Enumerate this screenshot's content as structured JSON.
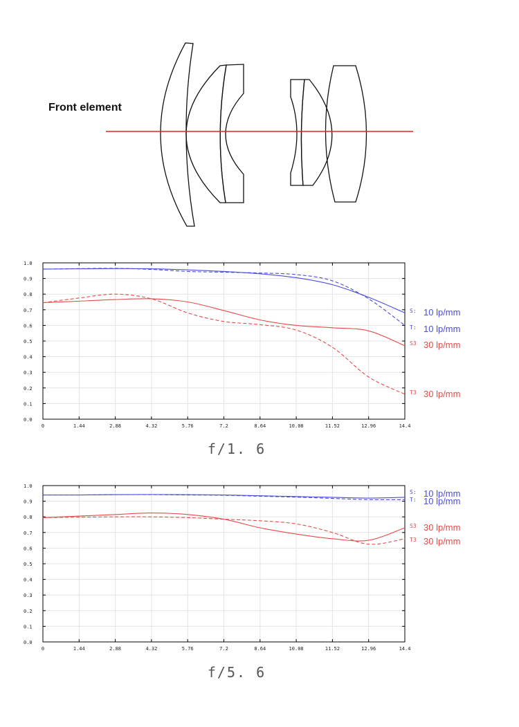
{
  "diagram": {
    "front_label": "Front element",
    "axis_color": "#e52222",
    "lens_color": "#111111"
  },
  "colors": {
    "sagittal_10": "#4a4ae0",
    "tangential_10": "#4a4ae0",
    "sagittal_30": "#e84848",
    "tangential_30": "#e84848"
  },
  "chart_data": [
    {
      "type": "line",
      "title": "",
      "caption": "f/1.6",
      "xlim": [
        0,
        14.4
      ],
      "ylim": [
        0,
        1.0
      ],
      "grid": true,
      "x_ticks": [
        "0",
        "1.44",
        "2.88",
        "4.32",
        "5.76",
        "7.2",
        "8.64",
        "10.08",
        "11.52",
        "12.96",
        "14.4"
      ],
      "y_ticks": [
        "0.0",
        "0.1",
        "0.2",
        "0.3",
        "0.4",
        "0.5",
        "0.6",
        "0.7",
        "0.8",
        "0.9",
        "1.0"
      ],
      "x": [
        0,
        1.44,
        2.88,
        4.32,
        5.76,
        7.2,
        8.64,
        10.08,
        11.52,
        12.96,
        14.4
      ],
      "series": [
        {
          "label": "S: 10 lp/mm",
          "style": "solid",
          "color": "#4a4ae0",
          "values": [
            0.96,
            0.962,
            0.963,
            0.962,
            0.955,
            0.945,
            0.93,
            0.905,
            0.86,
            0.78,
            0.68
          ]
        },
        {
          "label": "T: 10 lp/mm",
          "style": "dashed",
          "color": "#4a4ae0",
          "values": [
            0.96,
            0.963,
            0.965,
            0.958,
            0.945,
            0.94,
            0.935,
            0.925,
            0.885,
            0.77,
            0.6
          ]
        },
        {
          "label": "S3 30 lp/mm",
          "style": "solid",
          "color": "#e84848",
          "values": [
            0.745,
            0.755,
            0.765,
            0.77,
            0.75,
            0.695,
            0.635,
            0.6,
            0.585,
            0.565,
            0.47
          ]
        },
        {
          "label": "T3 30 lp/mm",
          "style": "dashed",
          "color": "#e84848",
          "values": [
            0.745,
            0.775,
            0.8,
            0.77,
            0.68,
            0.625,
            0.605,
            0.57,
            0.46,
            0.27,
            0.16
          ]
        }
      ],
      "labels": [
        {
          "code": "S:",
          "text": "10 lp/mm",
          "color": "#4a4ae0"
        },
        {
          "code": "T:",
          "text": "10 lp/mm",
          "color": "#4a4ae0"
        },
        {
          "code": "S3",
          "text": "30 lp/mm",
          "color": "#e84848"
        },
        {
          "code": "T3",
          "text": "30 lp/mm",
          "color": "#e84848"
        }
      ]
    },
    {
      "type": "line",
      "title": "",
      "caption": "f/5.6",
      "xlim": [
        0,
        14.4
      ],
      "ylim": [
        0,
        1.0
      ],
      "grid": true,
      "x_ticks": [
        "0",
        "1.44",
        "2.88",
        "4.32",
        "5.76",
        "7.2",
        "8.64",
        "10.08",
        "11.52",
        "12.96",
        "14.4"
      ],
      "y_ticks": [
        "0.0",
        "0.1",
        "0.2",
        "0.3",
        "0.4",
        "0.5",
        "0.6",
        "0.7",
        "0.8",
        "0.9",
        "1.0"
      ],
      "x": [
        0,
        1.44,
        2.88,
        4.32,
        5.76,
        7.2,
        8.64,
        10.08,
        11.52,
        12.96,
        14.4
      ],
      "series": [
        {
          "label": "S: 10 lp/mm",
          "style": "solid",
          "color": "#4a4ae0",
          "values": [
            0.94,
            0.94,
            0.942,
            0.943,
            0.942,
            0.94,
            0.935,
            0.93,
            0.925,
            0.92,
            0.925
          ]
        },
        {
          "label": "T: 10 lp/mm",
          "style": "dashed",
          "color": "#4a4ae0",
          "values": [
            0.94,
            0.94,
            0.942,
            0.942,
            0.94,
            0.938,
            0.932,
            0.926,
            0.918,
            0.91,
            0.91
          ]
        },
        {
          "label": "S3 30 lp/mm",
          "style": "solid",
          "color": "#e84848",
          "values": [
            0.795,
            0.805,
            0.815,
            0.825,
            0.815,
            0.785,
            0.73,
            0.69,
            0.66,
            0.65,
            0.73
          ]
        },
        {
          "label": "T3 30 lp/mm",
          "style": "dashed",
          "color": "#e84848",
          "values": [
            0.795,
            0.798,
            0.8,
            0.8,
            0.795,
            0.785,
            0.775,
            0.755,
            0.7,
            0.625,
            0.66
          ]
        }
      ],
      "labels": [
        {
          "code": "S:",
          "text": "10 lp/mm",
          "color": "#4a4ae0"
        },
        {
          "code": "T:",
          "text": "10 lp/mm",
          "color": "#4a4ae0"
        },
        {
          "code": "S3",
          "text": "30 lp/mm",
          "color": "#e84848"
        },
        {
          "code": "T3",
          "text": "30 lp/mm",
          "color": "#e84848"
        }
      ]
    }
  ],
  "captions": {
    "first": "f/1. 6",
    "second": "f/5. 6"
  }
}
